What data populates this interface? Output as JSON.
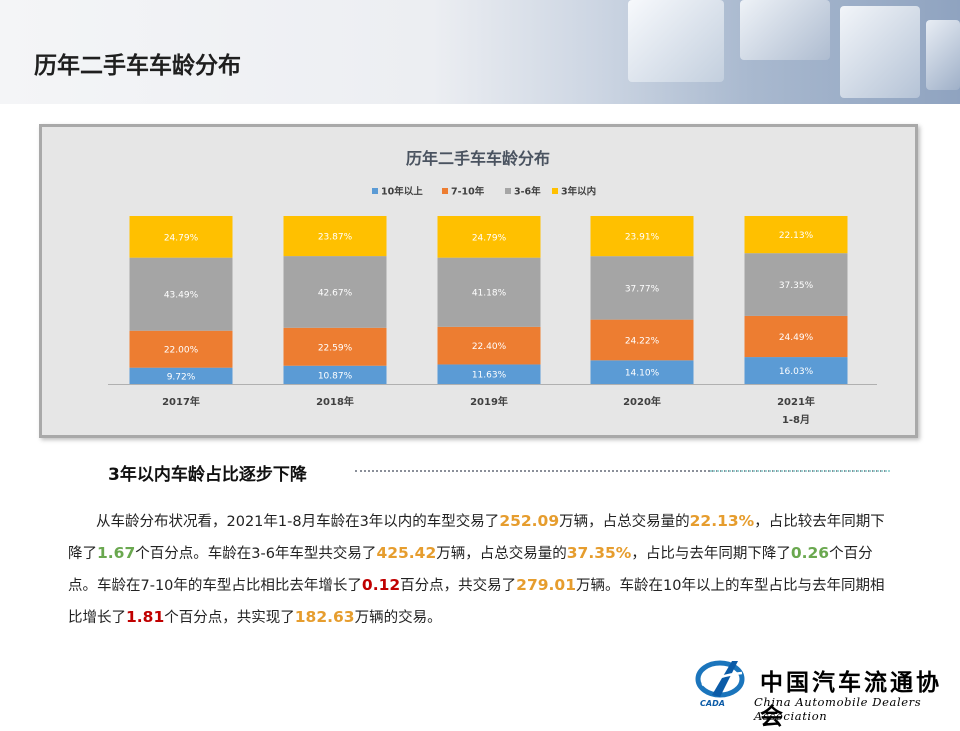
{
  "page": {
    "title": "历年二手车车龄分布"
  },
  "chart_data": {
    "type": "bar",
    "stacked": true,
    "percent": true,
    "title": "历年二手车车龄分布",
    "legend_position": "top",
    "categories": [
      [
        "2017年"
      ],
      [
        "2018年"
      ],
      [
        "2019年"
      ],
      [
        "2020年"
      ],
      [
        "2021年",
        "1-8月"
      ]
    ],
    "series": [
      {
        "name": "10年以上",
        "color": "#5b9bd5",
        "values": [
          9.72,
          10.87,
          11.63,
          14.1,
          16.03
        ],
        "labels": [
          "9.72%",
          "10.87%",
          "11.63%",
          "14.10%",
          "16.03%"
        ]
      },
      {
        "name": "7-10年",
        "color": "#ed7d31",
        "values": [
          22.0,
          22.59,
          22.4,
          24.22,
          24.49
        ],
        "labels": [
          "22.00%",
          "22.59%",
          "22.40%",
          "24.22%",
          "24.49%"
        ]
      },
      {
        "name": "3-6年",
        "color": "#a5a5a5",
        "values": [
          43.49,
          42.67,
          41.18,
          37.77,
          37.35
        ],
        "labels": [
          "43.49%",
          "42.67%",
          "41.18%",
          "37.77%",
          "37.35%"
        ]
      },
      {
        "name": "3年以内",
        "color": "#ffc000",
        "values": [
          24.79,
          23.87,
          24.79,
          23.91,
          22.13
        ],
        "labels": [
          "24.79%",
          "23.87%",
          "24.79%",
          "23.91%",
          "22.13%"
        ]
      }
    ],
    "ylim": [
      0,
      100
    ],
    "grid": false
  },
  "section": {
    "heading": "3年以内车龄占比逐步下降"
  },
  "paragraph": [
    {
      "t": "n",
      "v": "从车龄分布状况看，2021年1-8月车龄在3年以内的车型交易了"
    },
    {
      "t": "o",
      "v": "252.09"
    },
    {
      "t": "n",
      "v": "万辆，占总交易量的"
    },
    {
      "t": "o",
      "v": "22.13%"
    },
    {
      "t": "n",
      "v": "，占比较去年同期下降了"
    },
    {
      "t": "g",
      "v": "1.67"
    },
    {
      "t": "n",
      "v": "个百分点。车龄在3-6年车型共交易了"
    },
    {
      "t": "o",
      "v": "425.42"
    },
    {
      "t": "n",
      "v": "万辆，占总交易量的"
    },
    {
      "t": "o",
      "v": "37.35%"
    },
    {
      "t": "n",
      "v": "，占比与去年同期下降了"
    },
    {
      "t": "g",
      "v": "0.26"
    },
    {
      "t": "n",
      "v": "个百分点。车龄在7-10年的车型占比相比去年增长了"
    },
    {
      "t": "r",
      "v": "0.12"
    },
    {
      "t": "n",
      "v": "百分点，共交易了"
    },
    {
      "t": "o",
      "v": "279.01"
    },
    {
      "t": "n",
      "v": "万辆。车龄在10年以上的车型占比与去年同期相比增长了"
    },
    {
      "t": "r",
      "v": "1.81"
    },
    {
      "t": "n",
      "v": "个百分点，共实现了"
    },
    {
      "t": "o",
      "v": "182.63"
    },
    {
      "t": "n",
      "v": "万辆的交易。"
    }
  ],
  "logo": {
    "name_cn": "中国汽车流通协会",
    "name_en": "China Automobile Dealers Association",
    "abbr": "CADA"
  }
}
